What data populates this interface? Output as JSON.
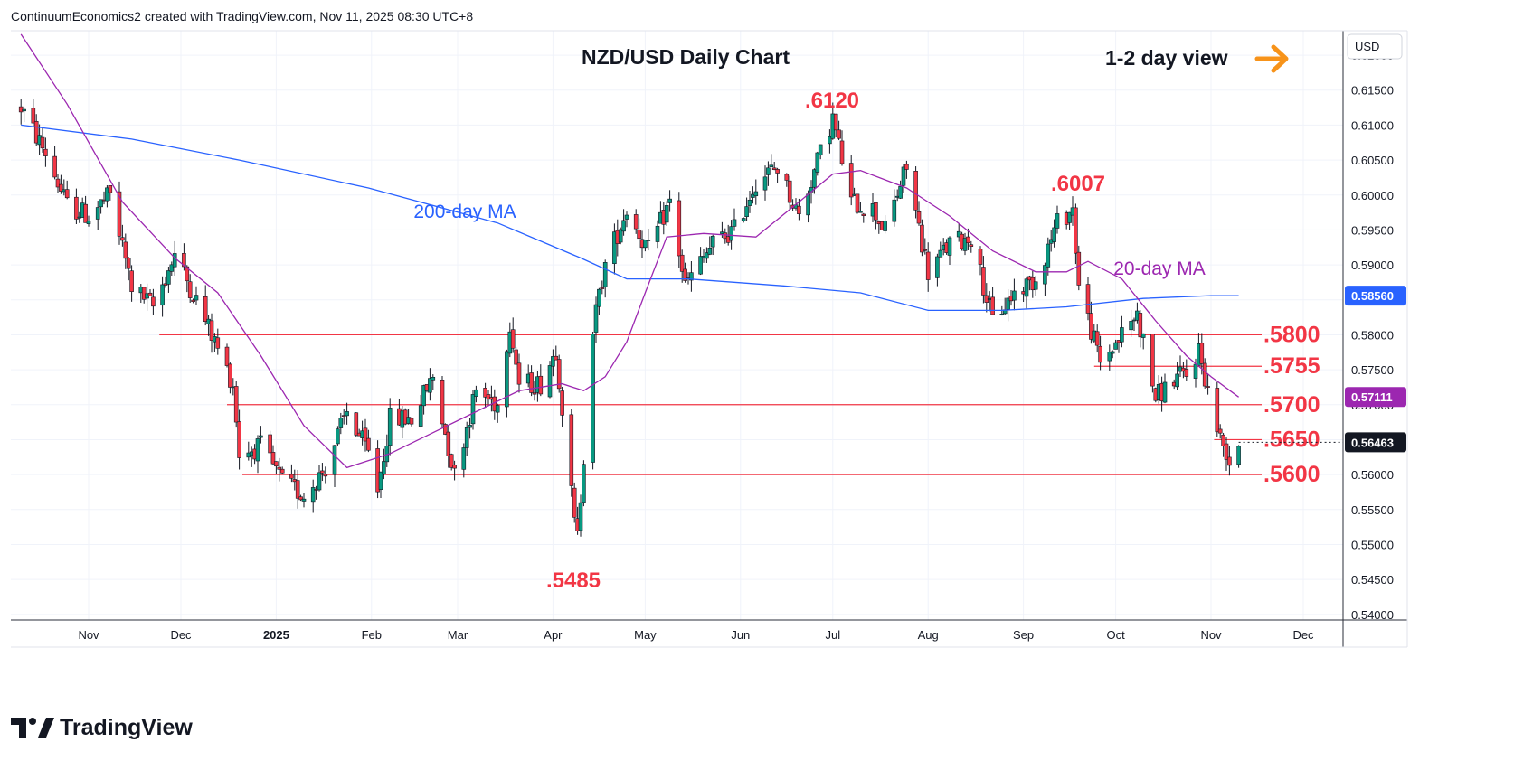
{
  "header": {
    "attribution": "ContinuumEconomics2 created with TradingView.com, Nov 11, 2025 08:30 UTC+8"
  },
  "branding": {
    "logo_text": "TradingView"
  },
  "currency_button": "USD",
  "colors": {
    "up": "#089981",
    "down": "#f23645",
    "ma200": "#2962ff",
    "ma20": "#9c27b0",
    "level": "#f23645",
    "arrow": "#f7931a",
    "price_tag": "#131722"
  },
  "chart_data": {
    "type": "candlestick",
    "title": "NZD/USD Daily Chart",
    "view": "1-2 day view",
    "x_ticks": [
      "Nov",
      "Dec",
      "2025",
      "Feb",
      "Mar",
      "Apr",
      "May",
      "Jun",
      "Jul",
      "Aug",
      "Sep",
      "Oct",
      "Nov",
      "Dec"
    ],
    "y_ticks": [
      "0.62000",
      "0.61500",
      "0.61000",
      "0.60500",
      "0.60000",
      "0.59500",
      "0.59000",
      "0.58500",
      "0.58000",
      "0.57500",
      "0.57000",
      "0.56500",
      "0.56000",
      "0.55500",
      "0.55000",
      "0.54500",
      "0.54000"
    ],
    "ylim": [
      0.5392,
      0.6235
    ],
    "grid": true,
    "levels": [
      {
        "label": ".5800",
        "value": 0.58
      },
      {
        "label": ".5755",
        "value": 0.5755
      },
      {
        "label": ".5700",
        "value": 0.57
      },
      {
        "label": ".5650",
        "value": 0.565
      },
      {
        "label": ".5600",
        "value": 0.56
      }
    ],
    "annotations": [
      {
        "text": ".6120",
        "value": 0.612,
        "date": "2025-06-30"
      },
      {
        "text": ".6007",
        "value": 0.6007,
        "date": "2025-09-17"
      },
      {
        "text": ".5485",
        "value": 0.5485,
        "date": "2025-04-09"
      },
      {
        "text": "200-day MA",
        "series": "ma200"
      },
      {
        "text": "20-day MA",
        "series": "ma20"
      }
    ],
    "price_tags": [
      {
        "label": "0.58560",
        "value": 0.5856,
        "series": "ma200"
      },
      {
        "label": "0.57111",
        "value": 0.57111,
        "series": "ma20"
      },
      {
        "label": "0.56463",
        "value": 0.56463,
        "series": "last"
      }
    ],
    "candle_path": [
      [
        "2024-10-10",
        0.6125
      ],
      [
        "2024-10-18",
        0.606
      ],
      [
        "2024-10-25",
        0.5985
      ],
      [
        "2024-11-01",
        0.597
      ],
      [
        "2024-11-08",
        0.6
      ],
      [
        "2024-11-15",
        0.587
      ],
      [
        "2024-11-22",
        0.584
      ],
      [
        "2024-11-29",
        0.5915
      ],
      [
        "2024-12-06",
        0.585
      ],
      [
        "2024-12-13",
        0.578
      ],
      [
        "2024-12-18",
        0.573
      ],
      [
        "2024-12-20",
        0.563
      ],
      [
        "2024-12-27",
        0.564
      ],
      [
        "2025-01-03",
        0.559
      ],
      [
        "2025-01-10",
        0.557
      ],
      [
        "2025-01-17",
        0.561
      ],
      [
        "2025-01-24",
        0.569
      ],
      [
        "2025-01-31",
        0.563
      ],
      [
        "2025-02-03",
        0.558
      ],
      [
        "2025-02-07",
        0.568
      ],
      [
        "2025-02-14",
        0.568
      ],
      [
        "2025-02-21",
        0.574
      ],
      [
        "2025-02-28",
        0.56
      ],
      [
        "2025-03-07",
        0.572
      ],
      [
        "2025-03-14",
        0.57
      ],
      [
        "2025-03-18",
        0.582
      ],
      [
        "2025-03-21",
        0.573
      ],
      [
        "2025-03-28",
        0.573
      ],
      [
        "2025-04-02",
        0.578
      ],
      [
        "2025-04-08",
        0.553
      ],
      [
        "2025-04-09",
        0.551
      ],
      [
        "2025-04-14",
        0.581
      ],
      [
        "2025-04-18",
        0.59
      ],
      [
        "2025-04-25",
        0.598
      ],
      [
        "2025-05-02",
        0.592
      ],
      [
        "2025-05-09",
        0.599
      ],
      [
        "2025-05-14",
        0.587
      ],
      [
        "2025-05-23",
        0.593
      ],
      [
        "2025-05-30",
        0.595
      ],
      [
        "2025-06-06",
        0.602
      ],
      [
        "2025-06-13",
        0.604
      ],
      [
        "2025-06-20",
        0.597
      ],
      [
        "2025-06-27",
        0.606
      ],
      [
        "2025-07-01",
        0.611
      ],
      [
        "2025-07-07",
        0.599
      ],
      [
        "2025-07-14",
        0.598
      ],
      [
        "2025-07-18",
        0.595
      ],
      [
        "2025-07-25",
        0.604
      ],
      [
        "2025-08-01",
        0.589
      ],
      [
        "2025-08-08",
        0.593
      ],
      [
        "2025-08-15",
        0.594
      ],
      [
        "2025-08-22",
        0.582
      ],
      [
        "2025-08-29",
        0.586
      ],
      [
        "2025-09-05",
        0.588
      ],
      [
        "2025-09-12",
        0.596
      ],
      [
        "2025-09-17",
        0.598
      ],
      [
        "2025-09-19",
        0.587
      ],
      [
        "2025-09-26",
        0.576
      ],
      [
        "2025-10-03",
        0.58
      ],
      [
        "2025-10-08",
        0.583
      ],
      [
        "2025-10-14",
        0.571
      ],
      [
        "2025-10-21",
        0.574
      ],
      [
        "2025-10-24",
        0.574
      ],
      [
        "2025-10-28",
        0.578
      ],
      [
        "2025-10-31",
        0.572
      ],
      [
        "2025-11-04",
        0.565
      ],
      [
        "2025-11-06",
        0.5635
      ],
      [
        "2025-11-07",
        0.562
      ],
      [
        "2025-11-10",
        0.5646
      ]
    ],
    "ma200_path": [
      [
        "2024-10-10",
        0.61
      ],
      [
        "2024-11-15",
        0.608
      ],
      [
        "2024-12-20",
        0.605
      ],
      [
        "2025-01-31",
        0.601
      ],
      [
        "2025-03-14",
        0.596
      ],
      [
        "2025-04-10",
        0.591
      ],
      [
        "2025-04-25",
        0.588
      ],
      [
        "2025-05-15",
        0.588
      ],
      [
        "2025-06-15",
        0.587
      ],
      [
        "2025-07-10",
        0.586
      ],
      [
        "2025-08-01",
        0.5835
      ],
      [
        "2025-08-25",
        0.5835
      ],
      [
        "2025-09-15",
        0.584
      ],
      [
        "2025-10-10",
        0.5852
      ],
      [
        "2025-11-01",
        0.5856
      ],
      [
        "2025-11-10",
        0.5856
      ]
    ],
    "ma20_path": [
      [
        "2024-10-10",
        0.623
      ],
      [
        "2024-10-25",
        0.613
      ],
      [
        "2024-11-12",
        0.599
      ],
      [
        "2024-11-29",
        0.591
      ],
      [
        "2024-12-13",
        0.586
      ],
      [
        "2024-12-27",
        0.577
      ],
      [
        "2025-01-10",
        0.567
      ],
      [
        "2025-01-24",
        0.561
      ],
      [
        "2025-02-07",
        0.563
      ],
      [
        "2025-02-21",
        0.566
      ],
      [
        "2025-03-07",
        0.569
      ],
      [
        "2025-03-21",
        0.572
      ],
      [
        "2025-04-04",
        0.573
      ],
      [
        "2025-04-11",
        0.572
      ],
      [
        "2025-04-18",
        0.574
      ],
      [
        "2025-04-25",
        0.579
      ],
      [
        "2025-05-01",
        0.586
      ],
      [
        "2025-05-08",
        0.594
      ],
      [
        "2025-05-20",
        0.5945
      ],
      [
        "2025-06-06",
        0.594
      ],
      [
        "2025-06-20",
        0.599
      ],
      [
        "2025-07-01",
        0.603
      ],
      [
        "2025-07-10",
        0.6035
      ],
      [
        "2025-07-25",
        0.601
      ],
      [
        "2025-08-08",
        0.597
      ],
      [
        "2025-08-22",
        0.592
      ],
      [
        "2025-09-05",
        0.589
      ],
      [
        "2025-09-15",
        0.589
      ],
      [
        "2025-09-22",
        0.5905
      ],
      [
        "2025-10-03",
        0.588
      ],
      [
        "2025-10-14",
        0.582
      ],
      [
        "2025-10-24",
        0.577
      ],
      [
        "2025-11-01",
        0.574
      ],
      [
        "2025-11-10",
        0.5711
      ]
    ]
  }
}
